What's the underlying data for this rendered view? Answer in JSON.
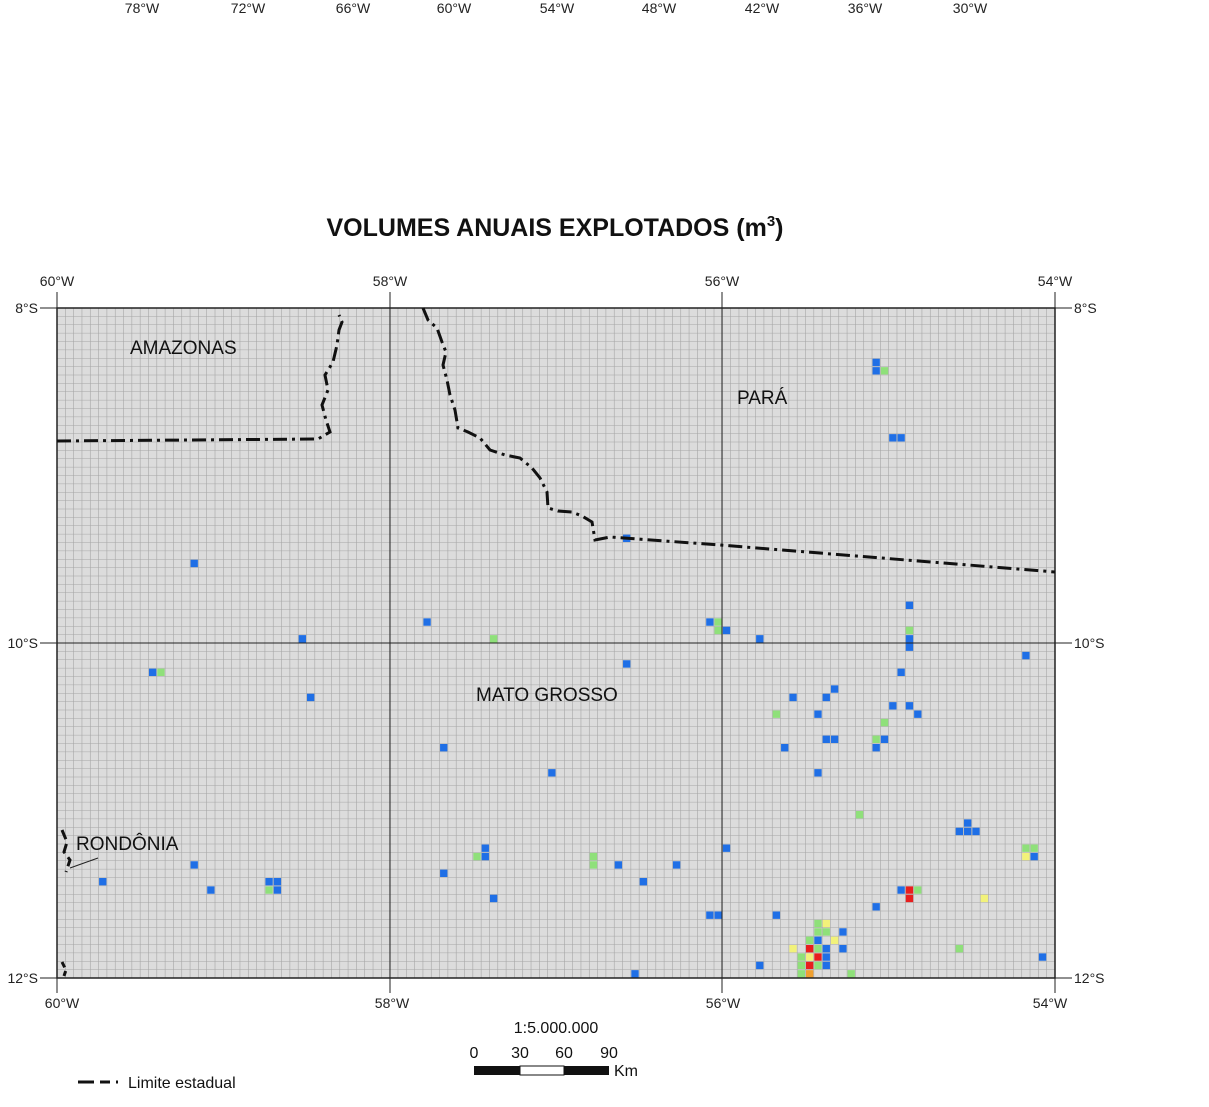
{
  "top_axis_labels": [
    "78°W",
    "72°W",
    "66°W",
    "60°W",
    "54°W",
    "48°W",
    "42°W",
    "36°W",
    "30°W"
  ],
  "title_main": "VOLUMES ANUAIS EXPLOTADOS (m",
  "title_sup": "3",
  "title_close": ")",
  "lon_labels": [
    "60°W",
    "58°W",
    "56°W",
    "54°W"
  ],
  "lat_labels": [
    "8°S",
    "10°S",
    "12°S"
  ],
  "regions": {
    "amazonas": "AMAZONAS",
    "para": "PARÁ",
    "mato_grosso": "MATO GROSSO",
    "rondonia": "RONDÔNIA"
  },
  "scale": {
    "ratio": "1:5.000.000",
    "ticks": [
      "0",
      "30",
      "60",
      "90"
    ],
    "unit": "Km"
  },
  "legend": {
    "state_boundary": "Limite estadual"
  },
  "colors": {
    "background": "#dcdcdc",
    "grid": "#a6a6a6",
    "blue": "#1f6fe6",
    "green": "#8fe07a",
    "yellow": "#f2f27a",
    "orange": "#f0a030",
    "red": "#e81e1e"
  },
  "map_data": {
    "extent": {
      "lon": [
        -60,
        -54
      ],
      "lat": [
        -12,
        -8
      ]
    },
    "cell_deg": 0.05,
    "cells": [
      {
        "lon": -55.1,
        "lat": -8.3,
        "c": "blue"
      },
      {
        "lon": -55.1,
        "lat": -8.35,
        "c": "blue"
      },
      {
        "lon": -55.05,
        "lat": -8.35,
        "c": "green"
      },
      {
        "lon": -55.0,
        "lat": -8.75,
        "c": "blue"
      },
      {
        "lon": -54.95,
        "lat": -8.75,
        "c": "blue"
      },
      {
        "lon": -56.6,
        "lat": -9.35,
        "c": "blue"
      },
      {
        "lon": -59.2,
        "lat": -9.5,
        "c": "blue"
      },
      {
        "lon": -58.55,
        "lat": -9.95,
        "c": "blue"
      },
      {
        "lon": -57.8,
        "lat": -9.85,
        "c": "blue"
      },
      {
        "lon": -57.4,
        "lat": -9.95,
        "c": "green"
      },
      {
        "lon": -56.1,
        "lat": -9.85,
        "c": "blue"
      },
      {
        "lon": -56.05,
        "lat": -9.9,
        "c": "green"
      },
      {
        "lon": -56.05,
        "lat": -9.85,
        "c": "green"
      },
      {
        "lon": -56.0,
        "lat": -9.9,
        "c": "blue"
      },
      {
        "lon": -55.8,
        "lat": -9.95,
        "c": "blue"
      },
      {
        "lon": -54.9,
        "lat": -9.75,
        "c": "blue"
      },
      {
        "lon": -54.9,
        "lat": -9.9,
        "c": "green"
      },
      {
        "lon": -54.9,
        "lat": -9.95,
        "c": "blue"
      },
      {
        "lon": -54.9,
        "lat": -10.0,
        "c": "blue"
      },
      {
        "lon": -54.2,
        "lat": -10.05,
        "c": "blue"
      },
      {
        "lon": -56.6,
        "lat": -10.1,
        "c": "blue"
      },
      {
        "lon": -59.45,
        "lat": -10.15,
        "c": "blue"
      },
      {
        "lon": -59.4,
        "lat": -10.15,
        "c": "green"
      },
      {
        "lon": -54.95,
        "lat": -10.15,
        "c": "blue"
      },
      {
        "lon": -55.35,
        "lat": -10.25,
        "c": "blue"
      },
      {
        "lon": -55.4,
        "lat": -10.3,
        "c": "blue"
      },
      {
        "lon": -55.6,
        "lat": -10.3,
        "c": "blue"
      },
      {
        "lon": -58.5,
        "lat": -10.3,
        "c": "blue"
      },
      {
        "lon": -55.0,
        "lat": -10.35,
        "c": "blue"
      },
      {
        "lon": -54.9,
        "lat": -10.35,
        "c": "blue"
      },
      {
        "lon": -54.85,
        "lat": -10.4,
        "c": "blue"
      },
      {
        "lon": -55.7,
        "lat": -10.4,
        "c": "green"
      },
      {
        "lon": -55.45,
        "lat": -10.4,
        "c": "blue"
      },
      {
        "lon": -55.05,
        "lat": -10.45,
        "c": "green"
      },
      {
        "lon": -55.4,
        "lat": -10.55,
        "c": "blue"
      },
      {
        "lon": -55.35,
        "lat": -10.55,
        "c": "blue"
      },
      {
        "lon": -55.1,
        "lat": -10.55,
        "c": "green"
      },
      {
        "lon": -55.05,
        "lat": -10.55,
        "c": "blue"
      },
      {
        "lon": -55.1,
        "lat": -10.6,
        "c": "blue"
      },
      {
        "lon": -57.7,
        "lat": -10.6,
        "c": "blue"
      },
      {
        "lon": -55.65,
        "lat": -10.6,
        "c": "blue"
      },
      {
        "lon": -57.05,
        "lat": -10.75,
        "c": "blue"
      },
      {
        "lon": -55.45,
        "lat": -10.75,
        "c": "blue"
      },
      {
        "lon": -55.2,
        "lat": -11.0,
        "c": "green"
      },
      {
        "lon": -54.55,
        "lat": -11.05,
        "c": "blue"
      },
      {
        "lon": -54.6,
        "lat": -11.1,
        "c": "blue"
      },
      {
        "lon": -54.55,
        "lat": -11.1,
        "c": "blue"
      },
      {
        "lon": -54.5,
        "lat": -11.1,
        "c": "blue"
      },
      {
        "lon": -57.45,
        "lat": -11.2,
        "c": "blue"
      },
      {
        "lon": -57.45,
        "lat": -11.25,
        "c": "blue"
      },
      {
        "lon": -57.5,
        "lat": -11.25,
        "c": "green"
      },
      {
        "lon": -56.0,
        "lat": -11.2,
        "c": "blue"
      },
      {
        "lon": -56.8,
        "lat": -11.25,
        "c": "green"
      },
      {
        "lon": -56.8,
        "lat": -11.3,
        "c": "green"
      },
      {
        "lon": -56.65,
        "lat": -11.3,
        "c": "blue"
      },
      {
        "lon": -56.3,
        "lat": -11.3,
        "c": "blue"
      },
      {
        "lon": -54.2,
        "lat": -11.2,
        "c": "green"
      },
      {
        "lon": -54.15,
        "lat": -11.2,
        "c": "green"
      },
      {
        "lon": -54.2,
        "lat": -11.25,
        "c": "yellow"
      },
      {
        "lon": -54.15,
        "lat": -11.25,
        "c": "blue"
      },
      {
        "lon": -59.2,
        "lat": -11.3,
        "c": "blue"
      },
      {
        "lon": -57.7,
        "lat": -11.35,
        "c": "blue"
      },
      {
        "lon": -59.75,
        "lat": -11.4,
        "c": "blue"
      },
      {
        "lon": -58.75,
        "lat": -11.4,
        "c": "blue"
      },
      {
        "lon": -58.7,
        "lat": -11.4,
        "c": "blue"
      },
      {
        "lon": -58.75,
        "lat": -11.45,
        "c": "green"
      },
      {
        "lon": -58.7,
        "lat": -11.45,
        "c": "blue"
      },
      {
        "lon": -59.1,
        "lat": -11.45,
        "c": "blue"
      },
      {
        "lon": -56.5,
        "lat": -11.4,
        "c": "blue"
      },
      {
        "lon": -57.4,
        "lat": -11.5,
        "c": "blue"
      },
      {
        "lon": -54.95,
        "lat": -11.45,
        "c": "blue"
      },
      {
        "lon": -54.9,
        "lat": -11.45,
        "c": "red"
      },
      {
        "lon": -54.85,
        "lat": -11.45,
        "c": "green"
      },
      {
        "lon": -54.9,
        "lat": -11.5,
        "c": "red"
      },
      {
        "lon": -54.45,
        "lat": -11.5,
        "c": "yellow"
      },
      {
        "lon": -55.1,
        "lat": -11.55,
        "c": "blue"
      },
      {
        "lon": -56.1,
        "lat": -11.6,
        "c": "blue"
      },
      {
        "lon": -56.05,
        "lat": -11.6,
        "c": "blue"
      },
      {
        "lon": -55.7,
        "lat": -11.6,
        "c": "blue"
      },
      {
        "lon": -55.45,
        "lat": -11.65,
        "c": "green"
      },
      {
        "lon": -55.4,
        "lat": -11.65,
        "c": "yellow"
      },
      {
        "lon": -55.3,
        "lat": -11.7,
        "c": "blue"
      },
      {
        "lon": -55.45,
        "lat": -11.7,
        "c": "green"
      },
      {
        "lon": -55.4,
        "lat": -11.7,
        "c": "green"
      },
      {
        "lon": -55.5,
        "lat": -11.75,
        "c": "green"
      },
      {
        "lon": -55.45,
        "lat": -11.75,
        "c": "blue"
      },
      {
        "lon": -55.35,
        "lat": -11.75,
        "c": "yellow"
      },
      {
        "lon": -55.6,
        "lat": -11.8,
        "c": "yellow"
      },
      {
        "lon": -55.5,
        "lat": -11.8,
        "c": "red"
      },
      {
        "lon": -55.45,
        "lat": -11.8,
        "c": "green"
      },
      {
        "lon": -55.4,
        "lat": -11.8,
        "c": "blue"
      },
      {
        "lon": -55.3,
        "lat": -11.8,
        "c": "blue"
      },
      {
        "lon": -55.55,
        "lat": -11.85,
        "c": "green"
      },
      {
        "lon": -55.5,
        "lat": -11.85,
        "c": "yellow"
      },
      {
        "lon": -55.45,
        "lat": -11.85,
        "c": "red"
      },
      {
        "lon": -55.4,
        "lat": -11.85,
        "c": "blue"
      },
      {
        "lon": -55.8,
        "lat": -11.9,
        "c": "blue"
      },
      {
        "lon": -55.55,
        "lat": -11.9,
        "c": "green"
      },
      {
        "lon": -55.5,
        "lat": -11.9,
        "c": "red"
      },
      {
        "lon": -55.45,
        "lat": -11.9,
        "c": "green"
      },
      {
        "lon": -55.4,
        "lat": -11.9,
        "c": "blue"
      },
      {
        "lon": -55.55,
        "lat": -11.95,
        "c": "green"
      },
      {
        "lon": -55.5,
        "lat": -11.95,
        "c": "orange"
      },
      {
        "lon": -55.25,
        "lat": -11.95,
        "c": "green"
      },
      {
        "lon": -54.6,
        "lat": -11.8,
        "c": "green"
      },
      {
        "lon": -54.1,
        "lat": -11.85,
        "c": "blue"
      },
      {
        "lon": -56.55,
        "lat": -11.95,
        "c": "blue"
      }
    ]
  }
}
